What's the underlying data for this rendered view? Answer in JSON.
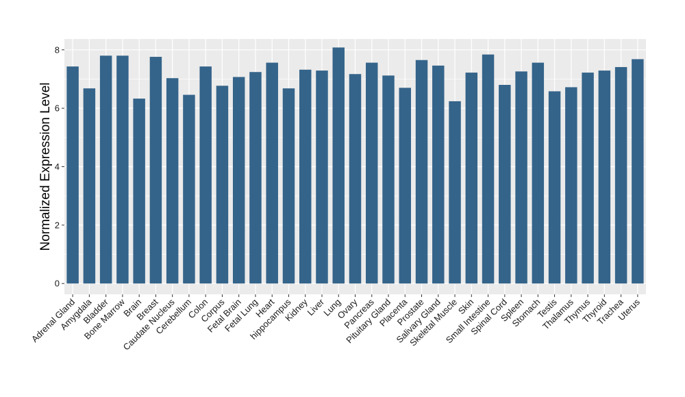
{
  "chart_data": {
    "type": "bar",
    "title": "",
    "xlabel": "",
    "ylabel": "Normalized Expression Level",
    "categories": [
      "Adrenal Gland",
      "Amygdala",
      "Bladder",
      "Bone Marrow",
      "Brain",
      "Breast",
      "Caudate Nucleus",
      "Cerebellum",
      "Colon",
      "Corpus",
      "Fetal Brain",
      "Fetal Lung",
      "Heart",
      "hippocampus",
      "Kidney",
      "Liver",
      "Lung",
      "Ovary",
      "Pancreas",
      "Pituitary Gland",
      "Placenta",
      "Prostate",
      "Salivary Gland",
      "Skeletal Muscle",
      "Skin",
      "Small Intestine",
      "Spinal Cord",
      "Spleen",
      "Stomach",
      "Testis",
      "Thalamus",
      "Thymus",
      "Thyroid",
      "Trachea",
      "Uterus"
    ],
    "values": [
      7.43,
      6.68,
      7.8,
      7.8,
      6.33,
      7.76,
      7.03,
      6.46,
      7.43,
      6.77,
      7.07,
      7.24,
      7.56,
      6.68,
      7.32,
      7.29,
      8.08,
      7.17,
      7.56,
      7.12,
      6.7,
      7.65,
      7.46,
      6.24,
      7.22,
      7.84,
      6.8,
      7.26,
      7.56,
      6.58,
      6.72,
      7.22,
      7.29,
      7.41,
      7.68
    ],
    "yticks": [
      0,
      2,
      4,
      6,
      8
    ],
    "ylim": [
      -0.37,
      8.37
    ],
    "grid": true,
    "bar_color": "#35648a",
    "panel_color": "#ebebeb",
    "grid_color": "#ffffff"
  }
}
